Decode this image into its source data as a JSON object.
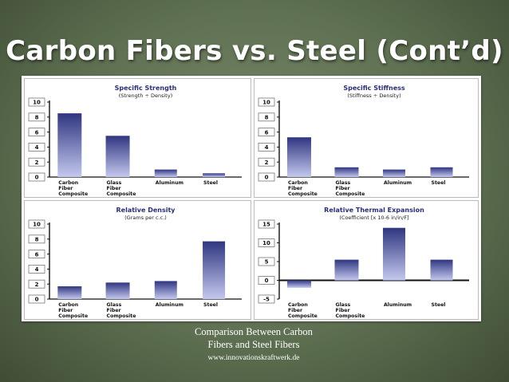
{
  "slide": {
    "title": "Carbon Fibers vs. Steel (Cont’d)",
    "caption_line1": "Comparison Between Carbon",
    "caption_line2": "Fibers and Steel Fibers",
    "caption_url": "www.innovationskraftwerk.de"
  },
  "colors": {
    "bar_top": "#2f3680",
    "bar_bottom": "#c4c8ee",
    "title_text": "#2a2f7a",
    "axis": "#111111",
    "grid_border": "#bbbbbb"
  },
  "chart_data": [
    {
      "type": "bar",
      "title": "Specific Strength",
      "subtitle": "(Strength ÷ Density)",
      "categories": [
        [
          "Carbon",
          "Fiber",
          "Composite"
        ],
        [
          "Glass",
          "Fiber",
          "Composite"
        ],
        [
          "Aluminum"
        ],
        [
          "Steel"
        ]
      ],
      "values": [
        8.5,
        5.5,
        1,
        0.5
      ],
      "ylim": [
        0,
        10
      ],
      "yticks": [
        0,
        2,
        4,
        6,
        8,
        10
      ],
      "grid": false
    },
    {
      "type": "bar",
      "title": "Specific Stiffness",
      "subtitle": "(Stiffness ÷ Density)",
      "categories": [
        [
          "Carbon",
          "Fiber",
          "Composite"
        ],
        [
          "Glass",
          "Fiber",
          "Composite"
        ],
        [
          "Aluminum"
        ],
        [
          "Steel"
        ]
      ],
      "values": [
        5.3,
        1.3,
        1,
        1.3
      ],
      "ylim": [
        0,
        10
      ],
      "yticks": [
        0,
        2,
        4,
        6,
        8,
        10
      ],
      "grid": false
    },
    {
      "type": "bar",
      "title": "Relative Density",
      "subtitle": "(Grams per c.c.)",
      "categories": [
        [
          "Carbon",
          "Fiber",
          "Composite"
        ],
        [
          "Glass",
          "Fiber",
          "Composite"
        ],
        [
          "Aluminum"
        ],
        [
          "Steel"
        ]
      ],
      "values": [
        1.7,
        2.2,
        2.4,
        7.7
      ],
      "ylim": [
        0,
        10
      ],
      "yticks": [
        0,
        2,
        4,
        6,
        8,
        10
      ],
      "grid": false
    },
    {
      "type": "bar",
      "title": "Relative Thermal Expansion",
      "subtitle": "(Coefficient [x 10-6 in/in/F]",
      "categories": [
        [
          "Carbon",
          "Fiber",
          "Composite"
        ],
        [
          "Glass",
          "Fiber",
          "Composite"
        ],
        [
          "Aluminum"
        ],
        [
          "Steel"
        ]
      ],
      "values": [
        -2,
        5.5,
        14,
        5.5
      ],
      "ylim": [
        -5,
        15
      ],
      "yticks": [
        -5,
        0,
        5,
        10,
        15
      ],
      "grid": false
    }
  ]
}
